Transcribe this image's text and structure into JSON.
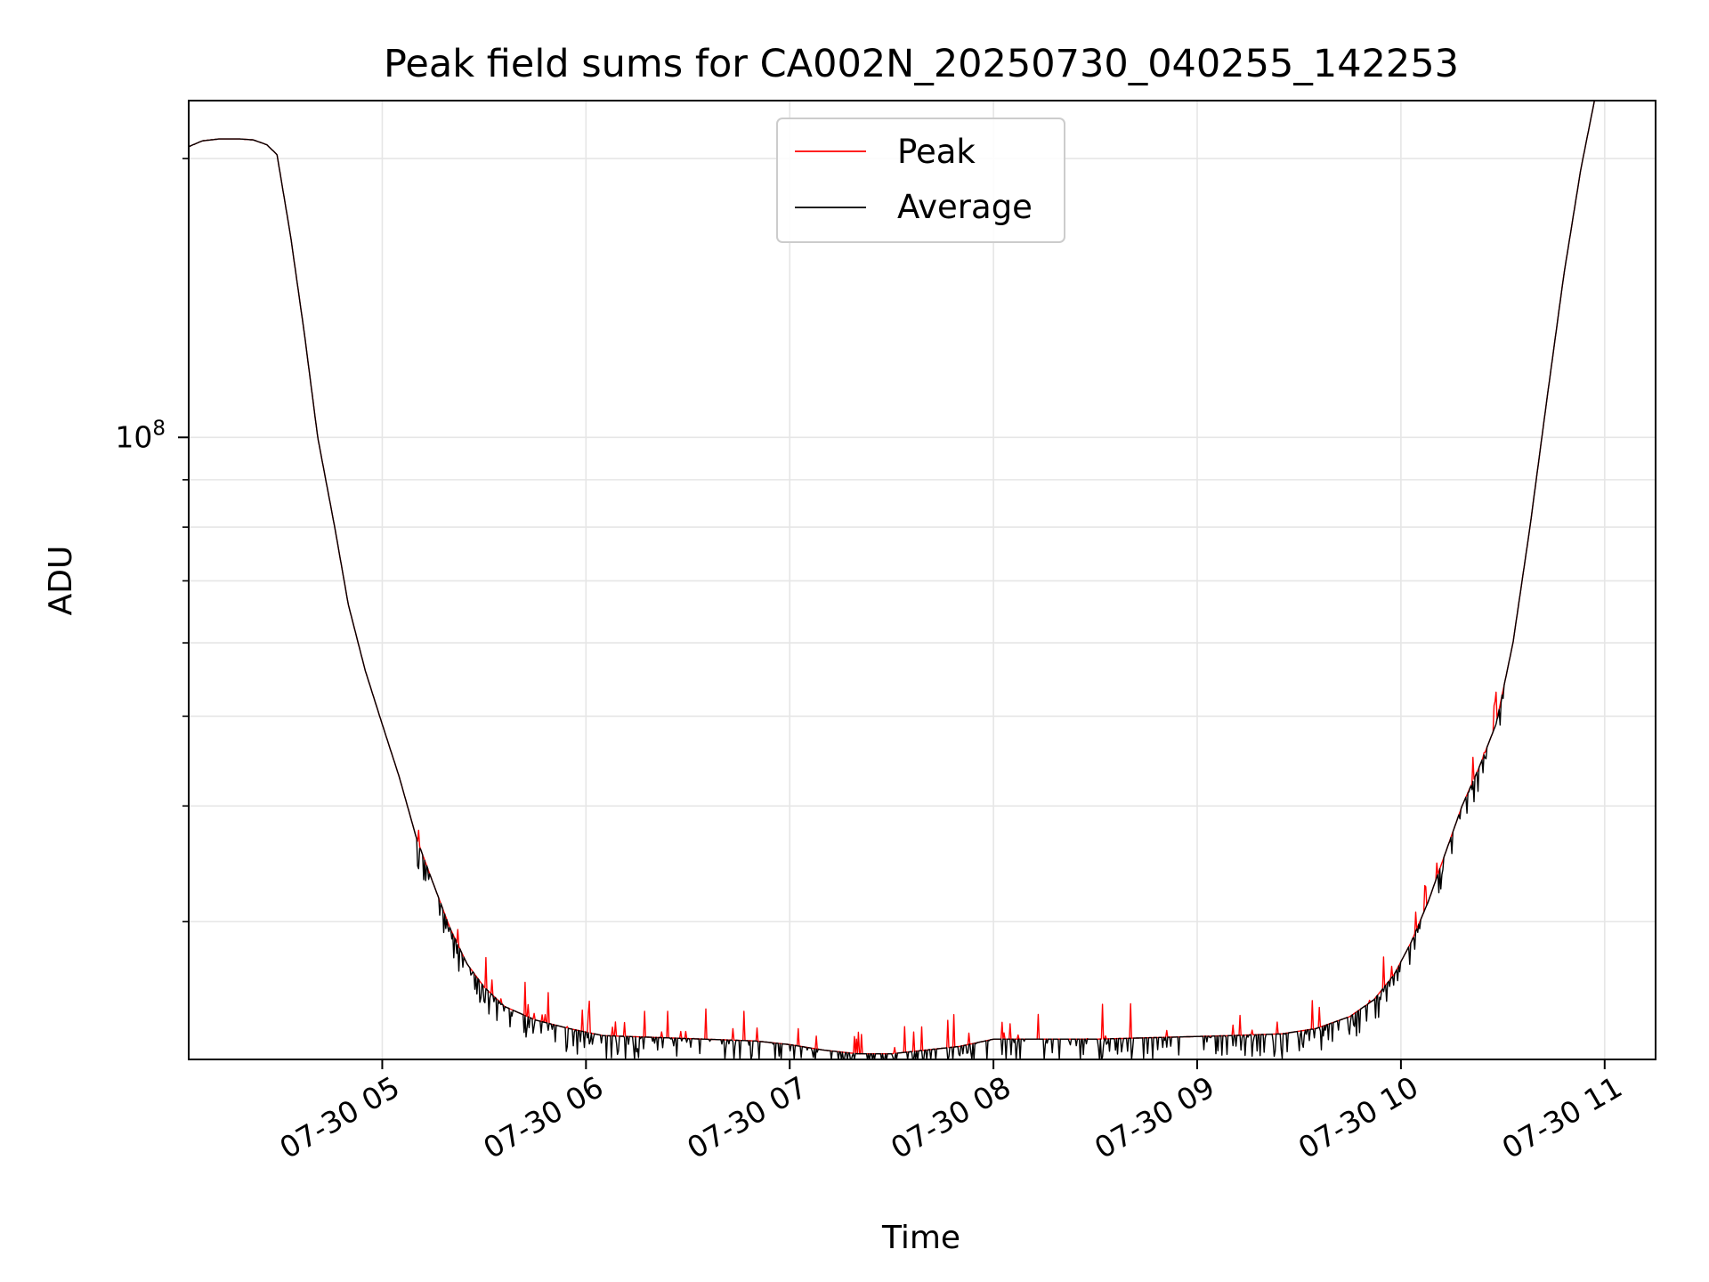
{
  "chart_data": {
    "type": "line",
    "title": "Peak field sums for CA002N_20250730_040255_142253",
    "xlabel": "Time",
    "ylabel": "ADU",
    "y_scale": "log",
    "y_major_tick_label": {
      "base": "10",
      "exponent": "8"
    },
    "y_major_tick_value": 100000000,
    "y_minor_ticks": [
      30000000,
      40000000,
      50000000,
      60000000,
      70000000,
      80000000,
      90000000,
      200000000
    ],
    "ylim": [
      21300000,
      231000000
    ],
    "xlim": [
      "2025-07-30 04:03",
      "2025-07-30 11:15"
    ],
    "x_ticks": [
      {
        "value": "2025-07-30 05:00",
        "label": "07-30 05"
      },
      {
        "value": "2025-07-30 06:00",
        "label": "07-30 06"
      },
      {
        "value": "2025-07-30 07:00",
        "label": "07-30 07"
      },
      {
        "value": "2025-07-30 08:00",
        "label": "07-30 08"
      },
      {
        "value": "2025-07-30 09:00",
        "label": "07-30 09"
      },
      {
        "value": "2025-07-30 10:00",
        "label": "07-30 10"
      },
      {
        "value": "2025-07-30 11:00",
        "label": "07-30 11"
      }
    ],
    "grid": true,
    "legend_position": "top-center",
    "series": [
      {
        "name": "Peak",
        "color": "#ff0000"
      },
      {
        "name": "Average",
        "color": "#000000"
      }
    ],
    "average_series_values": [
      [
        "2025-07-30 04:03",
        206000000
      ],
      [
        "2025-07-30 04:07",
        209000000
      ],
      [
        "2025-07-30 04:12",
        210000000
      ],
      [
        "2025-07-30 04:18",
        210000000
      ],
      [
        "2025-07-30 04:22",
        209500000
      ],
      [
        "2025-07-30 04:26",
        207000000
      ],
      [
        "2025-07-30 04:29",
        202000000
      ],
      [
        "2025-07-30 04:33",
        165000000
      ],
      [
        "2025-07-30 04:37",
        130000000
      ],
      [
        "2025-07-30 04:41",
        100000000
      ],
      [
        "2025-07-30 04:46",
        80000000
      ],
      [
        "2025-07-30 04:50",
        66000000
      ],
      [
        "2025-07-30 04:55",
        56000000
      ],
      [
        "2025-07-30 05:00",
        49000000
      ],
      [
        "2025-07-30 05:05",
        43000000
      ],
      [
        "2025-07-30 05:10",
        37000000
      ],
      [
        "2025-07-30 05:15",
        33000000
      ],
      [
        "2025-07-30 05:20",
        29500000
      ],
      [
        "2025-07-30 05:25",
        27000000
      ],
      [
        "2025-07-30 05:30",
        25500000
      ],
      [
        "2025-07-30 05:36",
        24300000
      ],
      [
        "2025-07-30 05:45",
        23500000
      ],
      [
        "2025-07-30 05:55",
        23000000
      ],
      [
        "2025-07-30 06:05",
        22600000
      ],
      [
        "2025-07-30 06:20",
        22500000
      ],
      [
        "2025-07-30 06:35",
        22400000
      ],
      [
        "2025-07-30 06:50",
        22300000
      ],
      [
        "2025-07-30 07:00",
        22100000
      ],
      [
        "2025-07-30 07:10",
        21800000
      ],
      [
        "2025-07-30 07:20",
        21600000
      ],
      [
        "2025-07-30 07:30",
        21600000
      ],
      [
        "2025-07-30 07:40",
        21800000
      ],
      [
        "2025-07-30 07:50",
        22000000
      ],
      [
        "2025-07-30 08:00",
        22400000
      ],
      [
        "2025-07-30 08:10",
        22400000
      ],
      [
        "2025-07-30 08:30",
        22400000
      ],
      [
        "2025-07-30 08:50",
        22500000
      ],
      [
        "2025-07-30 09:10",
        22600000
      ],
      [
        "2025-07-30 09:25",
        22700000
      ],
      [
        "2025-07-30 09:35",
        23000000
      ],
      [
        "2025-07-30 09:45",
        23700000
      ],
      [
        "2025-07-30 09:52",
        24700000
      ],
      [
        "2025-07-30 09:58",
        26300000
      ],
      [
        "2025-07-30 10:03",
        28500000
      ],
      [
        "2025-07-30 10:08",
        31500000
      ],
      [
        "2025-07-30 10:13",
        35500000
      ],
      [
        "2025-07-30 10:18",
        40000000
      ],
      [
        "2025-07-30 10:23",
        44000000
      ],
      [
        "2025-07-30 10:28",
        49000000
      ],
      [
        "2025-07-30 10:33",
        60000000
      ],
      [
        "2025-07-30 10:38",
        80000000
      ],
      [
        "2025-07-30 10:43",
        110000000
      ],
      [
        "2025-07-30 10:48",
        150000000
      ],
      [
        "2025-07-30 10:53",
        195000000
      ],
      [
        "2025-07-30 10:57",
        231000000
      ]
    ]
  }
}
